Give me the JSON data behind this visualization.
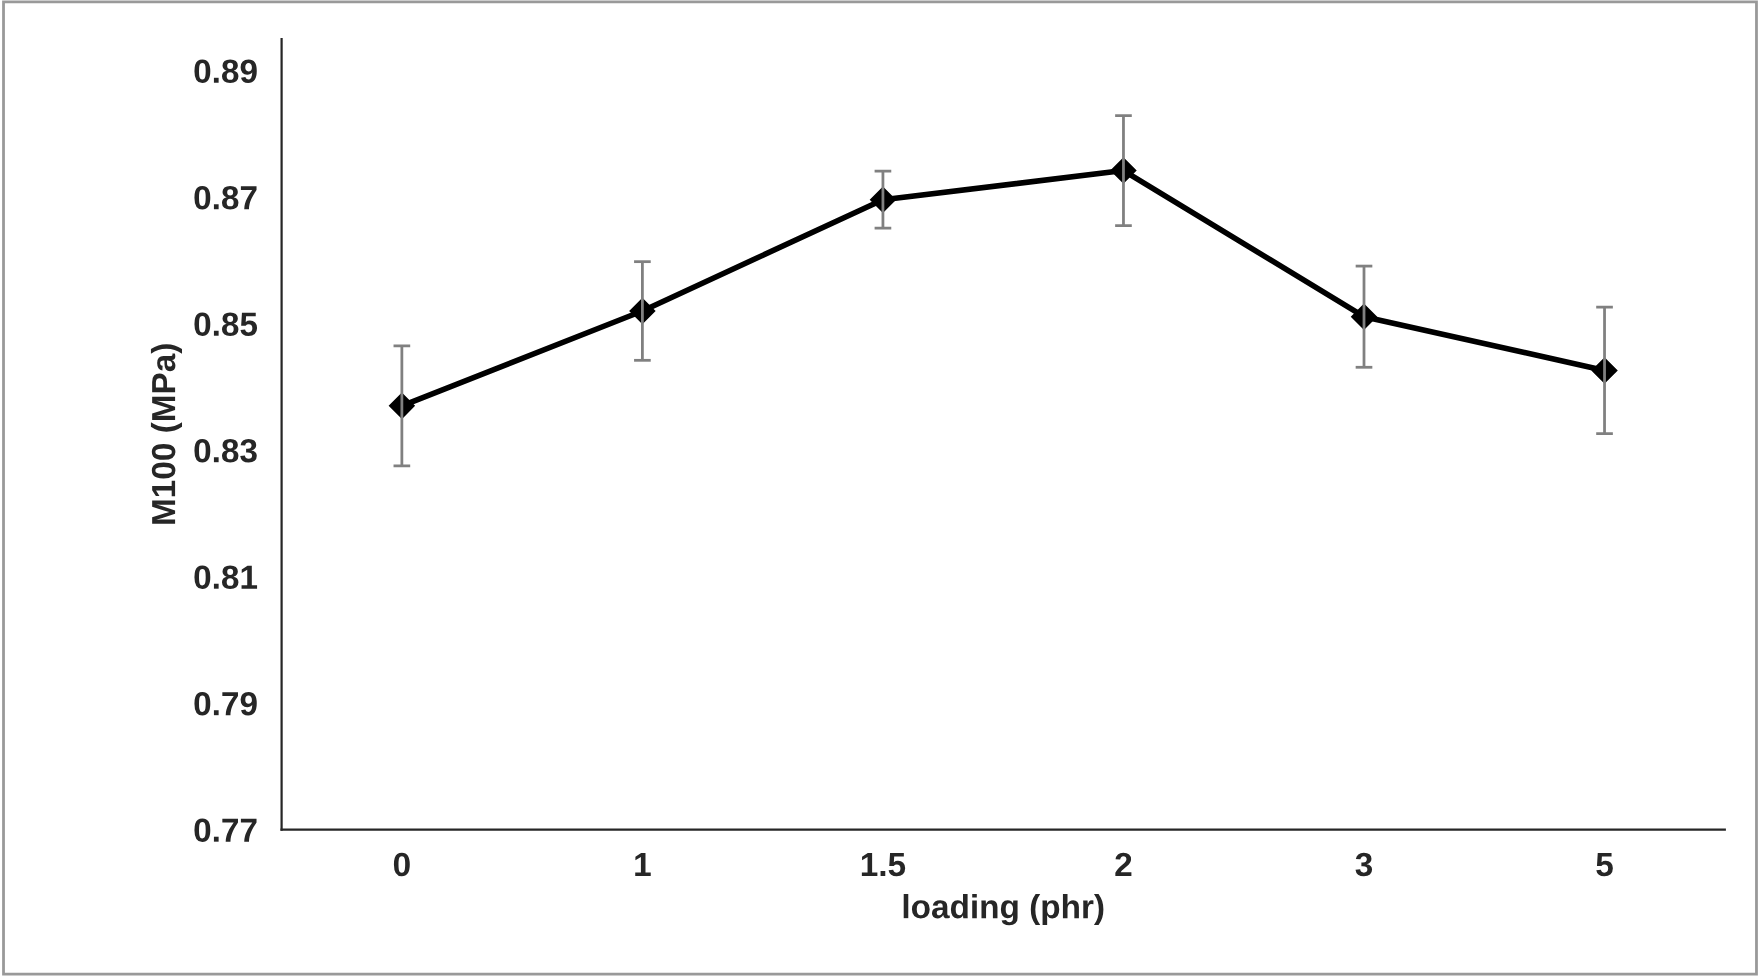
{
  "chart_data": {
    "type": "line",
    "xlabel": "loading (phr)",
    "ylabel": "M100 (MPa)",
    "categories": [
      "0",
      "1",
      "1.5",
      "2",
      "3",
      "5"
    ],
    "series": [
      {
        "color": "#000000",
        "values": [
          0.837,
          0.852,
          0.8696,
          0.8742,
          0.8511,
          0.8426
        ],
        "errors": [
          0.0095,
          0.0078,
          0.0045,
          0.0087,
          0.008,
          0.01
        ]
      }
    ],
    "ylim": [
      0.77,
      0.895
    ],
    "yticks": [
      0.77,
      0.79,
      0.81,
      0.83,
      0.85,
      0.87,
      0.89
    ],
    "marker": "diamond",
    "line_style": "solid",
    "grid": false,
    "legend": false
  }
}
